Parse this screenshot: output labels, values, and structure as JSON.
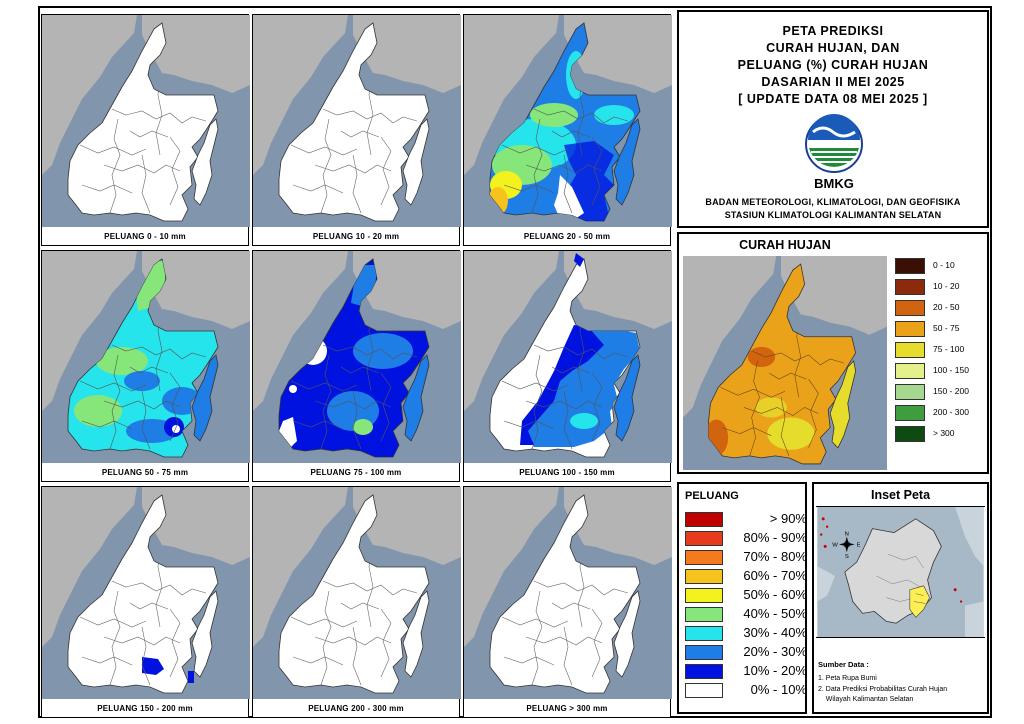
{
  "title_lines": [
    "PETA PREDIKSI",
    "CURAH HUJAN, DAN",
    "PELUANG (%) CURAH HUJAN",
    "DASARIAN II MEI 2025",
    "[ UPDATE DATA 08 MEI 2025 ]"
  ],
  "logo_text": "BMKG",
  "org_lines": [
    "BADAN METEOROLOGI, KLIMATOLOGI, DAN GEOFISIKA",
    "STASIUN KLIMATOLOGI KALIMANTAN SELATAN"
  ],
  "colors": {
    "sea": "#8196ad",
    "land_outside": "#b4b4b4",
    "region_default": "#ffffff",
    "border_lines": "#555555"
  },
  "panels": [
    {
      "caption": "PELUANG 0 - 10 mm",
      "fill": "none"
    },
    {
      "caption": "PELUANG 10 - 20 mm",
      "fill": "none"
    },
    {
      "caption": "PELUANG 20 - 50 mm",
      "fill": "mixed-high"
    },
    {
      "caption": "PELUANG 50 - 75 mm",
      "fill": "cyan-green"
    },
    {
      "caption": "PELUANG 75 - 100 mm",
      "fill": "blue"
    },
    {
      "caption": "PELUANG 100 - 150 mm",
      "fill": "partial-blue"
    },
    {
      "caption": "PELUANG 150 - 200 mm",
      "fill": "small-spot"
    },
    {
      "caption": "PELUANG 200 - 300 mm",
      "fill": "none"
    },
    {
      "caption": "PELUANG > 300 mm",
      "fill": "none"
    }
  ],
  "curah_hujan": {
    "title": "CURAH HUJAN",
    "legend": [
      {
        "label": "0 - 10",
        "color": "#3a1005"
      },
      {
        "label": "10 - 20",
        "color": "#8b2a0c"
      },
      {
        "label": "20 - 50",
        "color": "#d2640f"
      },
      {
        "label": "50 - 75",
        "color": "#eba21b"
      },
      {
        "label": "75 - 100",
        "color": "#e6dc2b"
      },
      {
        "label": "100 - 150",
        "color": "#e4f08c"
      },
      {
        "label": "150 - 200",
        "color": "#a6d98f"
      },
      {
        "label": "200 - 300",
        "color": "#3f9c3f"
      },
      {
        "label": "> 300",
        "color": "#0e4a12"
      }
    ]
  },
  "peluang": {
    "title": "PELUANG",
    "legend": [
      {
        "label": "> 90%",
        "color": "#c00000"
      },
      {
        "label": "80% - 90%",
        "color": "#e83a1d"
      },
      {
        "label": "70% - 80%",
        "color": "#f57a1c"
      },
      {
        "label": "60% - 70%",
        "color": "#f6c21e"
      },
      {
        "label": "50% - 60%",
        "color": "#f4f21e"
      },
      {
        "label": "40% - 50%",
        "color": "#86e67a"
      },
      {
        "label": "30% - 40%",
        "color": "#26e4ec"
      },
      {
        "label": "20% - 30%",
        "color": "#1f7de6"
      },
      {
        "label": "10% - 20%",
        "color": "#0012e0"
      },
      {
        "label": "0% - 10%",
        "color": "#ffffff"
      }
    ]
  },
  "inset": {
    "title": "Inset Peta",
    "compass": {
      "n": "N",
      "s": "S",
      "e": "E",
      "w": "W"
    },
    "source_title": "Sumber Data :",
    "sources": [
      "1. Peta Rupa Bumi",
      "2. Data Prediksi Probabilitas Curah Hujan",
      "    Wilayah Kalimantan Selatan"
    ]
  }
}
